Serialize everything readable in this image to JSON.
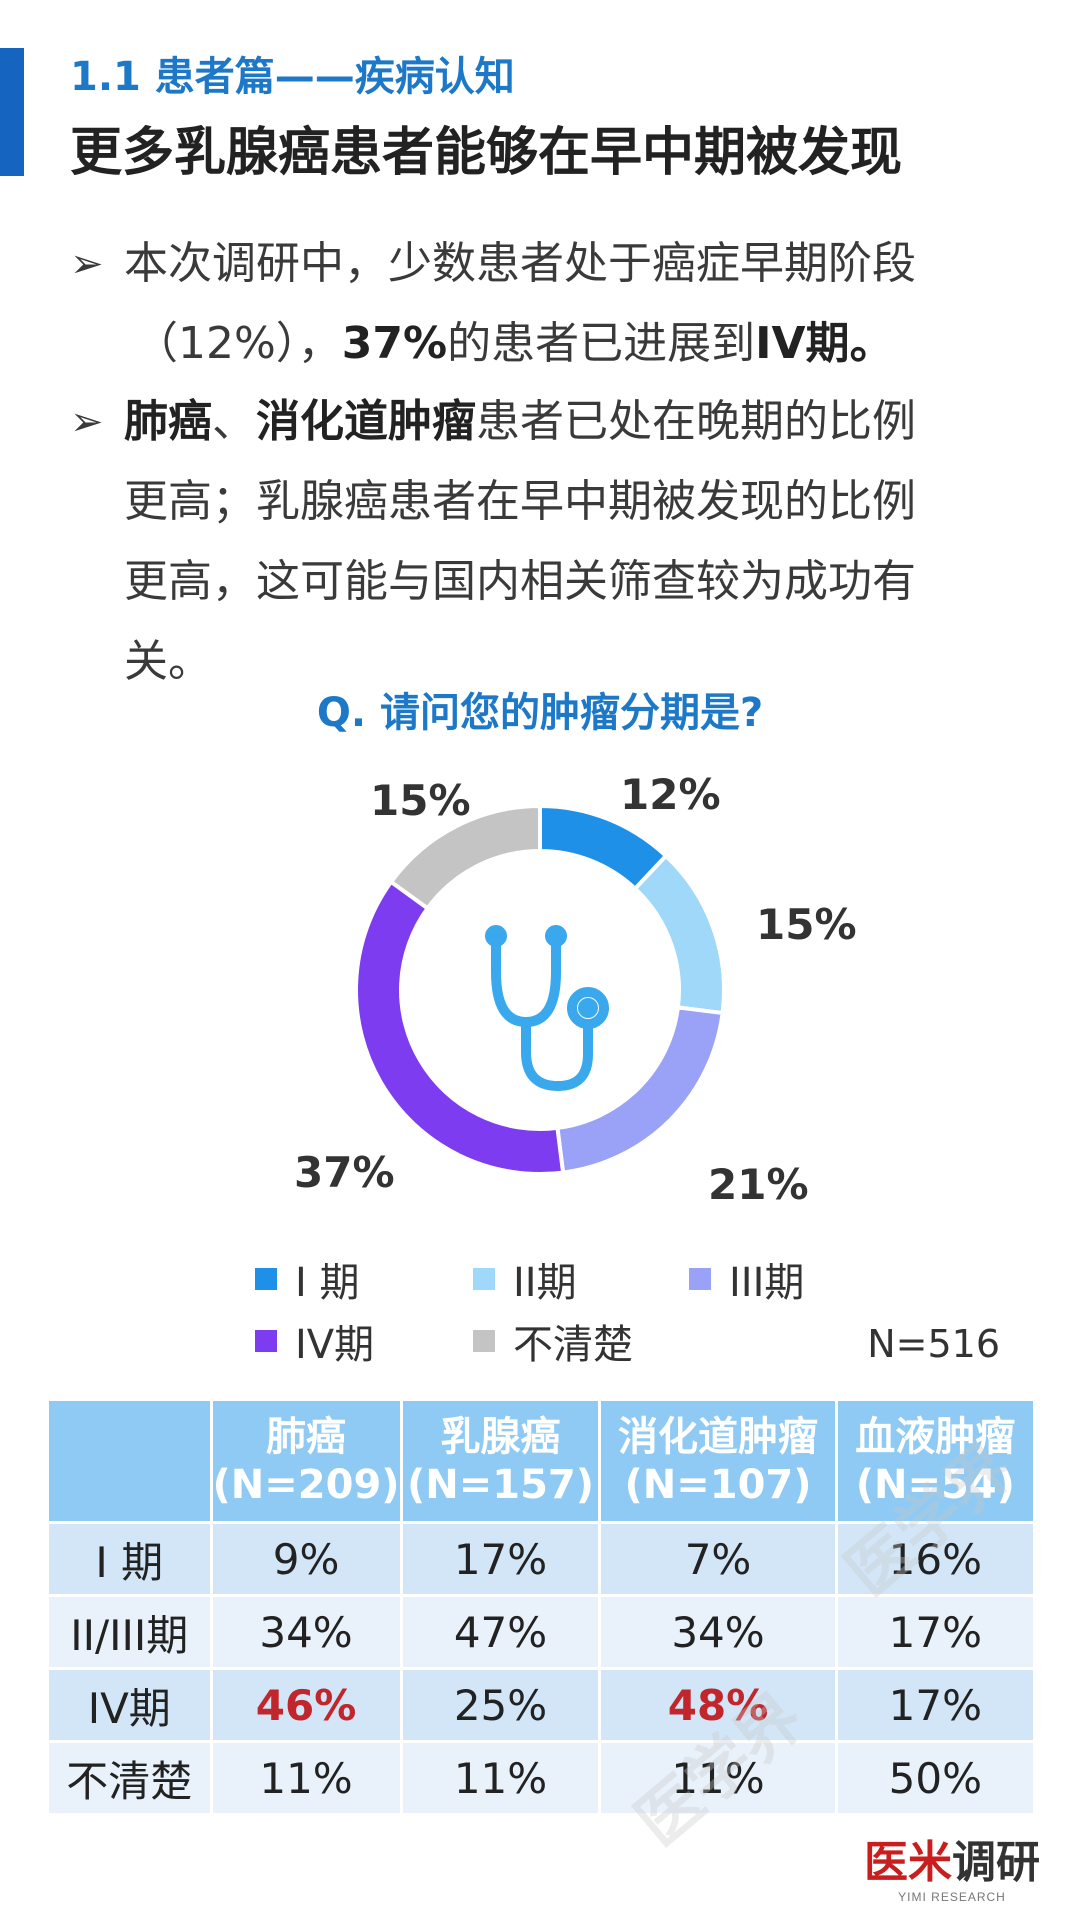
{
  "header": {
    "section_label": "1.1  患者篇——疾病认知",
    "title": "更多乳腺癌患者能够在早中期被发现"
  },
  "bullets": {
    "b1_line1": "本次调研中，少数患者处于癌症早期阶段",
    "b1_line2_a": "（12%），",
    "b1_line2_b": "37%",
    "b1_line2_c": "的患者已进展到",
    "b1_line2_d": "IV期",
    "b1_line2_e": "。",
    "b2_line1_a": "肺癌",
    "b2_line1_b": "、",
    "b2_line1_c": "消化道肿瘤",
    "b2_line1_d": "患者已处在晚期的比例",
    "b2_line2": "更高；乳腺癌患者在早中期被发现的比例",
    "b2_line3": "更高，这可能与国内相关筛查较为成功有",
    "b2_line4": "关。"
  },
  "chart_data": {
    "type": "pie",
    "donut": true,
    "title": "Q. 请问您的肿瘤分期是?",
    "sample_size": "N=516",
    "legend_position": "bottom",
    "categories": [
      "I 期",
      "II期",
      "III期",
      "IV期",
      "不清楚"
    ],
    "values": [
      12,
      15,
      21,
      37,
      15
    ],
    "labels": [
      "12%",
      "15%",
      "21%",
      "37%",
      "15%"
    ],
    "colors": [
      "#1e90e8",
      "#9fd8f8",
      "#9aa2f8",
      "#7d3cf0",
      "#c4c4c4"
    ],
    "center_icon": "stethoscope-icon"
  },
  "table": {
    "headers": [
      {
        "line1": "",
        "line2": ""
      },
      {
        "line1": "肺癌",
        "line2": "(N=209)"
      },
      {
        "line1": "乳腺癌",
        "line2": "(N=157)"
      },
      {
        "line1": "消化道肿瘤",
        "line2": "(N=107)"
      },
      {
        "line1": "血液肿瘤",
        "line2": "(N=54)"
      }
    ],
    "rows": [
      {
        "label": "I 期",
        "cells": [
          "9%",
          "17%",
          "7%",
          "16%"
        ]
      },
      {
        "label": "II/III期",
        "cells": [
          "34%",
          "47%",
          "34%",
          "17%"
        ]
      },
      {
        "label": "IV期",
        "cells": [
          "46%",
          "25%",
          "48%",
          "17%"
        ]
      },
      {
        "label": "不清楚",
        "cells": [
          "11%",
          "11%",
          "11%",
          "50%"
        ]
      }
    ],
    "highlight_color": "#c0262c"
  },
  "logo": {
    "red_part": "医米",
    "black_part": "调研",
    "sub": "YIMI RESEARCH"
  },
  "watermark": "医学界"
}
